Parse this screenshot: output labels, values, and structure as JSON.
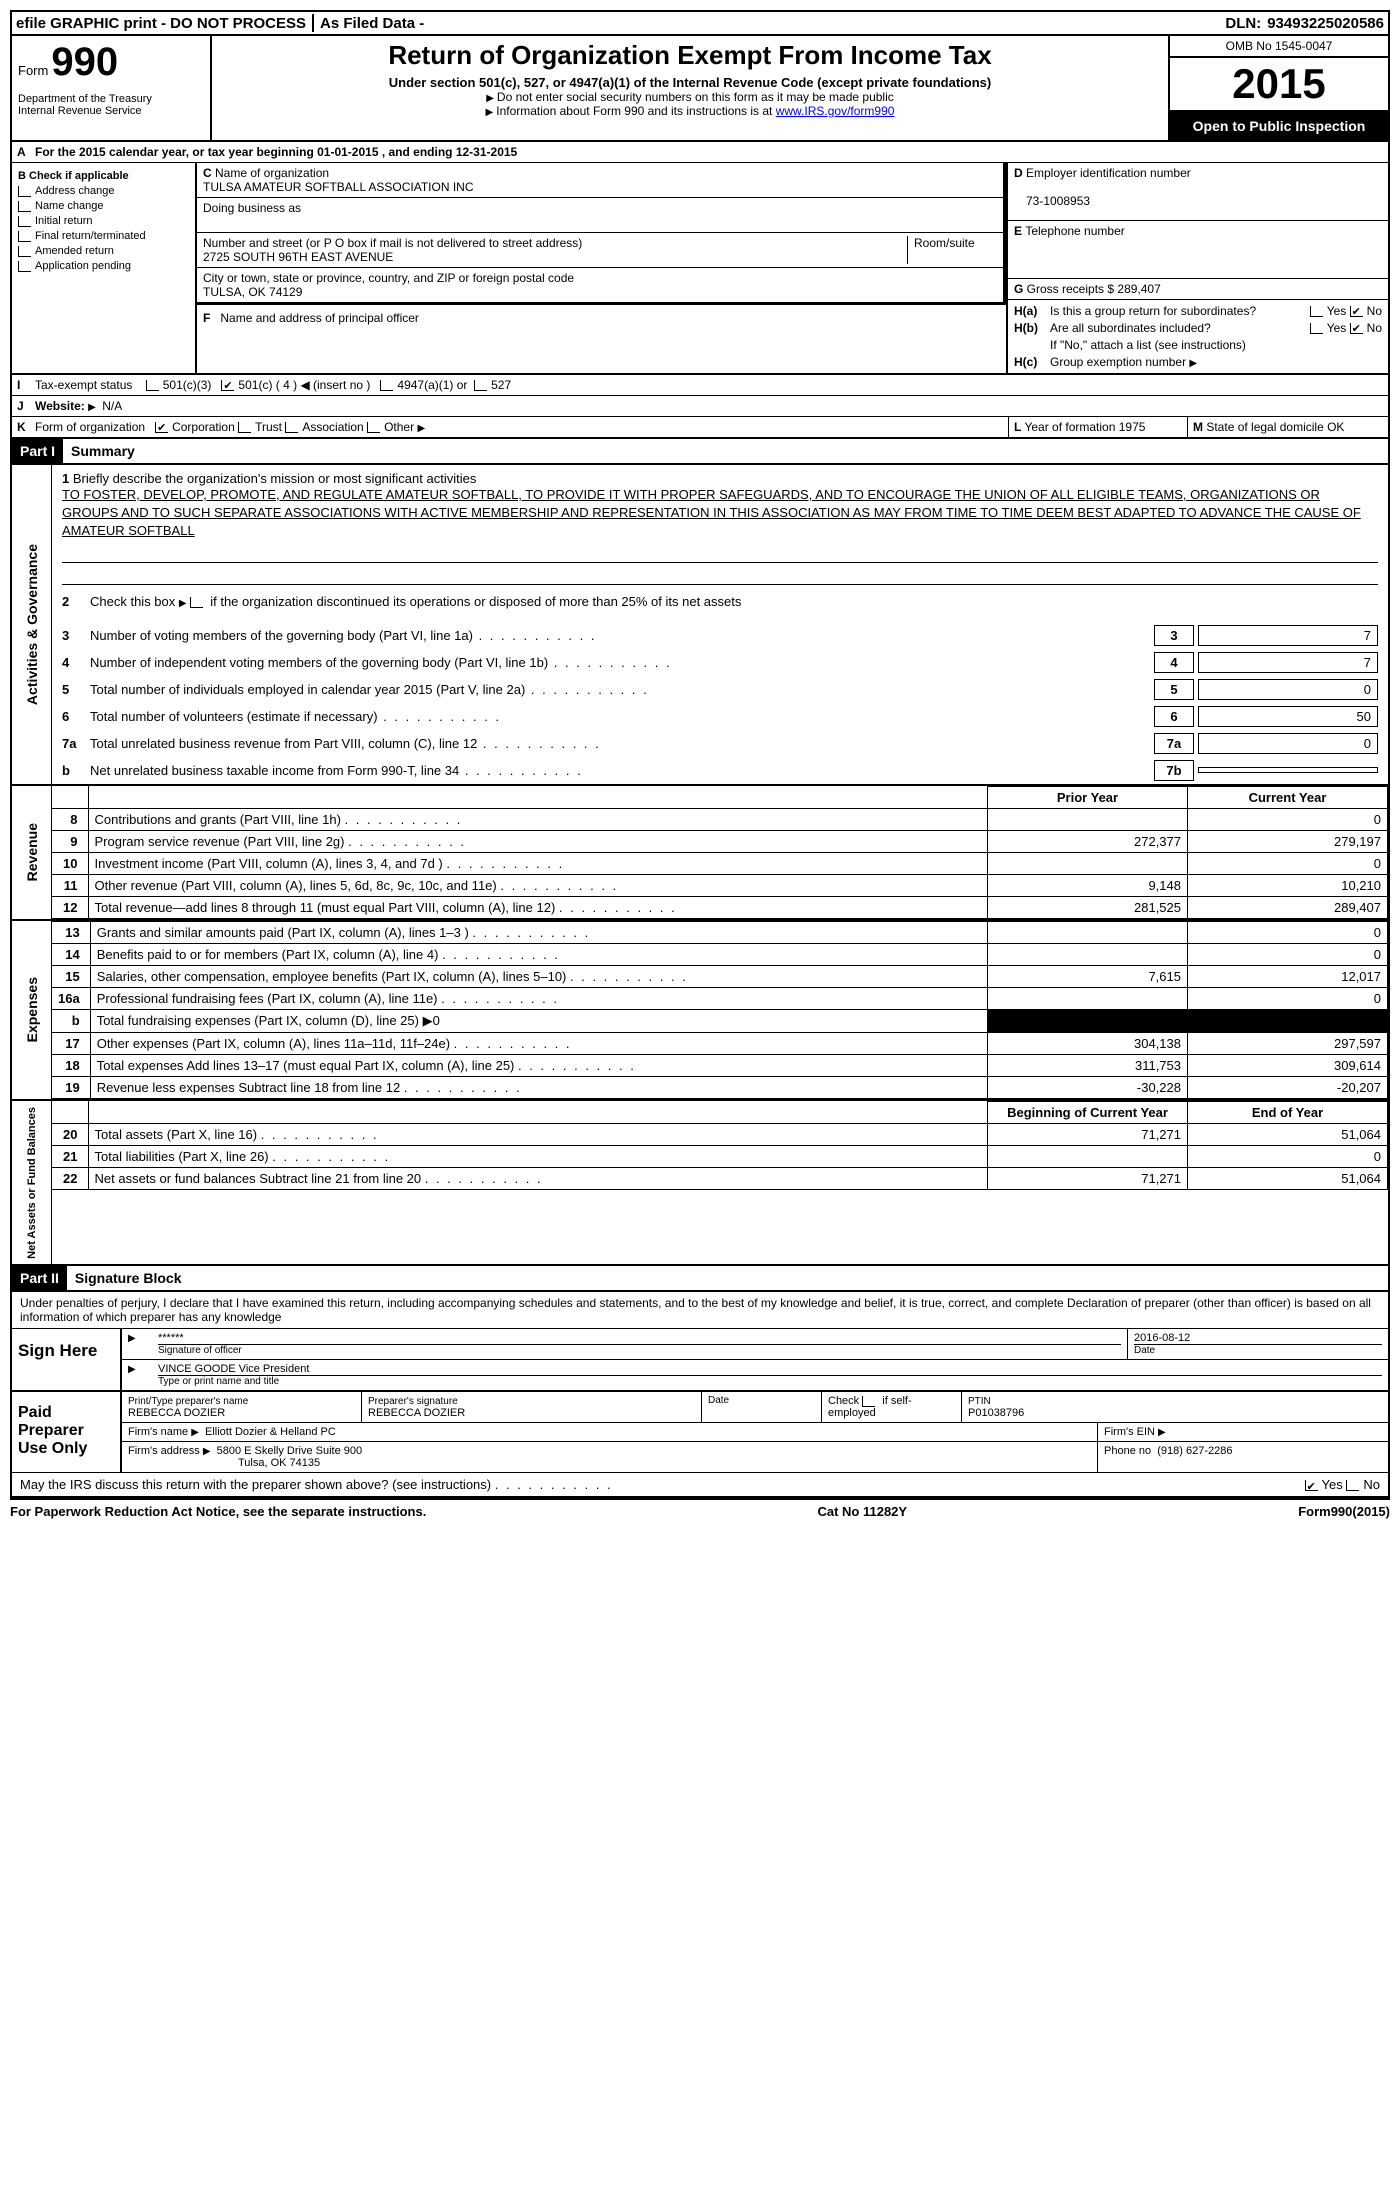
{
  "topbar": {
    "efile": "efile GRAPHIC print - DO NOT PROCESS",
    "asfiled": "As Filed Data -",
    "dln_label": "DLN:",
    "dln": "93493225020586"
  },
  "header": {
    "form_word": "Form",
    "form_num": "990",
    "dept": "Department of the Treasury",
    "irs": "Internal Revenue Service",
    "title": "Return of Organization Exempt From Income Tax",
    "subtitle": "Under section 501(c), 527, or 4947(a)(1) of the Internal Revenue Code (except private foundations)",
    "note1": "Do not enter social security numbers on this form as it may be made public",
    "note2_pre": "Information about Form 990 and its instructions is at ",
    "note2_link": "www.IRS.gov/form990",
    "omb": "OMB No 1545-0047",
    "year": "2015",
    "inspection": "Open to Public Inspection"
  },
  "sectionA": {
    "line": "For the 2015 calendar year, or tax year beginning 01-01-2015     , and ending 12-31-2015"
  },
  "sectionB": {
    "label": "Check if applicable",
    "items": [
      "Address change",
      "Name change",
      "Initial return",
      "Final return/terminated",
      "Amended return",
      "Application pending"
    ]
  },
  "org": {
    "c_label": "Name of organization",
    "name": "TULSA AMATEUR SOFTBALL ASSOCIATION INC",
    "dba_label": "Doing business as",
    "addr_label": "Number and street (or P O  box if mail is not delivered to street address)",
    "room_label": "Room/suite",
    "addr": "2725 SOUTH 96TH EAST AVENUE",
    "city_label": "City or town, state or province, country, and ZIP or foreign postal code",
    "city": "TULSA, OK  74129",
    "f_label": "Name and address of principal officer"
  },
  "right": {
    "d_label": "Employer identification number",
    "ein": "73-1008953",
    "e_label": "Telephone number",
    "g_label": "Gross receipts $",
    "g_val": "289,407",
    "ha": "Is this a group return for subordinates?",
    "hb": "Are all subordinates included?",
    "hb_note": "If \"No,\" attach a list (see instructions)",
    "hc": "Group exemption number",
    "yes": "Yes",
    "no": "No"
  },
  "status": {
    "i_label": "Tax-exempt status",
    "c3": "501(c)(3)",
    "c4": "501(c) ( 4 )",
    "insert": "(insert no )",
    "a1": "4947(a)(1) or",
    "s527": "527",
    "j_label": "Website:",
    "website": "N/A",
    "k_label": "Form of organization",
    "corp": "Corporation",
    "trust": "Trust",
    "assoc": "Association",
    "other": "Other",
    "l_label": "Year of formation  1975",
    "m_label": "State of legal domicile  OK"
  },
  "part1": {
    "part": "Part I",
    "title": "Summary",
    "q1_label": "Briefly describe the organization's mission or most significant activities",
    "mission": "TO FOSTER, DEVELOP, PROMOTE, AND REGULATE AMATEUR SOFTBALL, TO PROVIDE IT WITH PROPER SAFEGUARDS, AND TO ENCOURAGE THE UNION OF ALL ELIGIBLE TEAMS, ORGANIZATIONS OR GROUPS AND TO SUCH SEPARATE ASSOCIATIONS WITH ACTIVE MEMBERSHIP AND REPRESENTATION IN THIS ASSOCIATION AS MAY FROM TIME TO TIME DEEM BEST ADAPTED TO ADVANCE THE CAUSE OF AMATEUR SOFTBALL",
    "q2": "Check this box",
    "q2_suffix": "if the organization discontinued its operations or disposed of more than 25% of its net assets",
    "gov_lines": [
      {
        "n": "3",
        "t": "Number of voting members of the governing body (Part VI, line 1a)",
        "box": "3",
        "v": "7"
      },
      {
        "n": "4",
        "t": "Number of independent voting members of the governing body (Part VI, line 1b)",
        "box": "4",
        "v": "7"
      },
      {
        "n": "5",
        "t": "Total number of individuals employed in calendar year 2015 (Part V, line 2a)",
        "box": "5",
        "v": "0"
      },
      {
        "n": "6",
        "t": "Total number of volunteers (estimate if necessary)",
        "box": "6",
        "v": "50"
      },
      {
        "n": "7a",
        "t": "Total unrelated business revenue from Part VIII, column (C), line 12",
        "box": "7a",
        "v": "0"
      },
      {
        "n": "b",
        "t": "Net unrelated business taxable income from Form 990-T, line 34",
        "box": "7b",
        "v": ""
      }
    ]
  },
  "vlabels": {
    "gov": "Activities & Governance",
    "rev": "Revenue",
    "exp": "Expenses",
    "net": "Net Assets or Fund Balances"
  },
  "fin": {
    "prior_hdr": "Prior Year",
    "current_hdr": "Current Year",
    "revenue": [
      {
        "n": "8",
        "t": "Contributions and grants (Part VIII, line 1h)",
        "p": "",
        "c": "0"
      },
      {
        "n": "9",
        "t": "Program service revenue (Part VIII, line 2g)",
        "p": "272,377",
        "c": "279,197"
      },
      {
        "n": "10",
        "t": "Investment income (Part VIII, column (A), lines 3, 4, and 7d )",
        "p": "",
        "c": "0"
      },
      {
        "n": "11",
        "t": "Other revenue (Part VIII, column (A), lines 5, 6d, 8c, 9c, 10c, and 11e)",
        "p": "9,148",
        "c": "10,210"
      },
      {
        "n": "12",
        "t": "Total revenue—add lines 8 through 11 (must equal Part VIII, column (A), line 12)",
        "p": "281,525",
        "c": "289,407"
      }
    ],
    "expenses": [
      {
        "n": "13",
        "t": "Grants and similar amounts paid (Part IX, column (A), lines 1–3 )",
        "p": "",
        "c": "0"
      },
      {
        "n": "14",
        "t": "Benefits paid to or for members (Part IX, column (A), line 4)",
        "p": "",
        "c": "0"
      },
      {
        "n": "15",
        "t": "Salaries, other compensation, employee benefits (Part IX, column (A), lines 5–10)",
        "p": "7,615",
        "c": "12,017"
      },
      {
        "n": "16a",
        "t": "Professional fundraising fees (Part IX, column (A), line 11e)",
        "p": "",
        "c": "0"
      },
      {
        "n": "b",
        "t": "Total fundraising expenses (Part IX, column (D), line 25) ▶0",
        "p": "SHADE",
        "c": "SHADE"
      },
      {
        "n": "17",
        "t": "Other expenses (Part IX, column (A), lines 11a–11d, 11f–24e)",
        "p": "304,138",
        "c": "297,597"
      },
      {
        "n": "18",
        "t": "Total expenses Add lines 13–17 (must equal Part IX, column (A), line 25)",
        "p": "311,753",
        "c": "309,614"
      },
      {
        "n": "19",
        "t": "Revenue less expenses Subtract line 18 from line 12",
        "p": "-30,228",
        "c": "-20,207"
      }
    ],
    "begin_hdr": "Beginning of Current Year",
    "end_hdr": "End of Year",
    "net": [
      {
        "n": "20",
        "t": "Total assets (Part X, line 16)",
        "p": "71,271",
        "c": "51,064"
      },
      {
        "n": "21",
        "t": "Total liabilities (Part X, line 26)",
        "p": "",
        "c": "0"
      },
      {
        "n": "22",
        "t": "Net assets or fund balances Subtract line 21 from line 20",
        "p": "71,271",
        "c": "51,064"
      }
    ]
  },
  "part2": {
    "part": "Part II",
    "title": "Signature Block",
    "perjury": "Under penalties of perjury, I declare that I have examined this return, including accompanying schedules and statements, and to the best of my knowledge and belief, it is true, correct, and complete Declaration of preparer (other than officer) is based on all information of which preparer has any knowledge",
    "sign_here": "Sign Here",
    "stars": "******",
    "sig_officer": "Signature of officer",
    "date_label": "Date",
    "sig_date": "2016-08-12",
    "officer_name": "VINCE GOODE Vice President",
    "type_label": "Type or print name and title",
    "paid": "Paid Preparer Use Only",
    "prep_name_label": "Print/Type preparer's name",
    "prep_name": "REBECCA DOZIER",
    "prep_sig_label": "Preparer's signature",
    "prep_sig": "REBECCA DOZIER",
    "check_se": "Check           if self-employed",
    "ptin_label": "PTIN",
    "ptin": "P01038796",
    "firm_name_label": "Firm's name   ",
    "firm_name": "Elliott Dozier & Helland PC",
    "firm_ein_label": "Firm's EIN",
    "firm_addr_label": "Firm's address",
    "firm_addr": "5800 E Skelly Drive Suite 900",
    "firm_city": "Tulsa, OK  74135",
    "phone_label": "Phone no",
    "phone": "(918) 627-2286",
    "discuss": "May the IRS discuss this return with the preparer shown above? (see instructions)"
  },
  "footer": {
    "left": "For Paperwork Reduction Act Notice, see the separate instructions.",
    "cat": "Cat No 11282Y",
    "form": "Form",
    "formnum": "990",
    "formyear": "(2015)"
  }
}
